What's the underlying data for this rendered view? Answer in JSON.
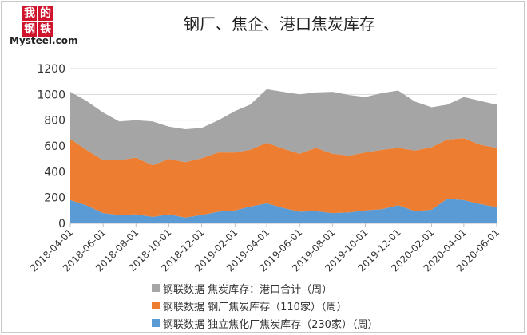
{
  "logo": {
    "chars": [
      "我",
      "的",
      "钢",
      "铁"
    ],
    "text": "Mysteel.com"
  },
  "chart_data": {
    "type": "area",
    "stacked": true,
    "title": "钢厂、焦企、港口焦炭库存",
    "ylim": [
      0,
      1200
    ],
    "yticks": [
      0,
      200,
      400,
      600,
      800,
      1000,
      1200
    ],
    "xlim": [
      "2018-04-01",
      "2020-06-01"
    ],
    "xticks": [
      "2018-04-01",
      "2018-06-01",
      "2018-08-01",
      "2018-10-01",
      "2018-12-01",
      "2019-02-01",
      "2019-04-01",
      "2019-06-01",
      "2019-08-01",
      "2019-10-01",
      "2019-12-01",
      "2020-02-01",
      "2020-04-01",
      "2020-06-01"
    ],
    "grid": true,
    "legend_position": "bottom",
    "x": [
      "2018-04-01",
      "2018-05-01",
      "2018-06-01",
      "2018-07-01",
      "2018-08-01",
      "2018-09-01",
      "2018-10-01",
      "2018-11-01",
      "2018-12-01",
      "2019-01-01",
      "2019-02-01",
      "2019-03-01",
      "2019-04-01",
      "2019-05-01",
      "2019-06-01",
      "2019-07-01",
      "2019-08-01",
      "2019-09-01",
      "2019-10-01",
      "2019-11-01",
      "2019-12-01",
      "2020-01-01",
      "2020-02-01",
      "2020-03-01",
      "2020-04-01",
      "2020-05-01",
      "2020-06-01"
    ],
    "series": [
      {
        "name": "钢联数据 独立焦化厂焦炭库存（230家）（周）",
        "color": "#5b9bd5",
        "values": [
          180,
          140,
          80,
          65,
          70,
          50,
          70,
          45,
          65,
          90,
          100,
          130,
          155,
          120,
          90,
          95,
          80,
          85,
          100,
          110,
          140,
          95,
          105,
          190,
          180,
          150,
          125
        ]
      },
      {
        "name": "钢联数据 钢厂焦炭库存（110家）（周）",
        "color": "#ed7d31",
        "values": [
          475,
          430,
          410,
          425,
          440,
          400,
          430,
          430,
          440,
          460,
          450,
          440,
          470,
          460,
          450,
          490,
          460,
          440,
          450,
          460,
          445,
          470,
          485,
          460,
          480,
          460,
          460
        ]
      },
      {
        "name": "钢联数据 焦炭库存：港口合计（周）",
        "color": "#a5a5a5",
        "values": [
          365,
          380,
          370,
          300,
          290,
          340,
          250,
          255,
          235,
          250,
          320,
          350,
          415,
          440,
          460,
          430,
          480,
          470,
          430,
          440,
          445,
          380,
          310,
          270,
          320,
          340,
          335
        ]
      }
    ]
  }
}
